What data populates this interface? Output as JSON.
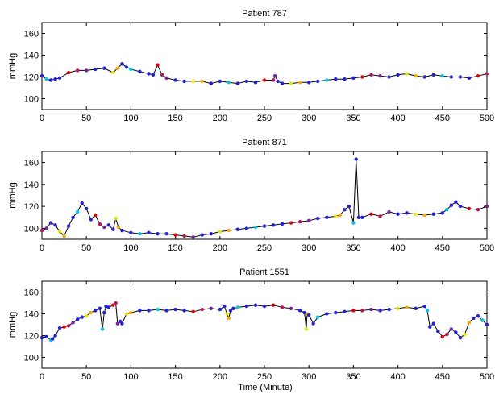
{
  "chart_data": [
    {
      "type": "line",
      "title": "Patient 787",
      "ylabel": "mmHg",
      "xlabel": "",
      "xlim": [
        0,
        500
      ],
      "ylim": [
        90,
        170
      ],
      "x_ticks": [
        0,
        50,
        100,
        150,
        200,
        250,
        300,
        350,
        400,
        450,
        500
      ],
      "y_ticks": [
        100,
        120,
        140,
        160
      ],
      "series": [
        {
          "x": [
            0,
            5,
            10,
            15,
            20,
            30,
            40,
            50,
            60,
            70,
            80,
            85,
            90,
            95,
            100,
            110,
            120,
            125,
            130,
            135,
            140,
            150,
            160,
            170,
            180,
            190,
            200,
            210,
            220,
            230,
            240,
            250,
            260,
            262,
            265,
            270,
            280,
            290,
            300,
            310,
            320,
            330,
            340,
            350,
            360,
            370,
            380,
            390,
            400,
            410,
            420,
            430,
            440,
            450,
            460,
            470,
            480,
            490,
            500
          ],
          "values": [
            121,
            118,
            117,
            118,
            119,
            124,
            126,
            126,
            127,
            128,
            124,
            128,
            132,
            129,
            127,
            125,
            123,
            122,
            131,
            122,
            119,
            117,
            116,
            116,
            116,
            114,
            116,
            115,
            114,
            116,
            115,
            117,
            117,
            121,
            116,
            114,
            114,
            115,
            115,
            116,
            117,
            118,
            118,
            119,
            120,
            122,
            121,
            120,
            122,
            123,
            121,
            120,
            122,
            121,
            120,
            120,
            119,
            121,
            123
          ]
        }
      ]
    },
    {
      "type": "line",
      "title": "Patient 871",
      "ylabel": "mmHg",
      "xlabel": "",
      "xlim": [
        0,
        500
      ],
      "ylim": [
        90,
        170
      ],
      "x_ticks": [
        0,
        50,
        100,
        150,
        200,
        250,
        300,
        350,
        400,
        450,
        500
      ],
      "y_ticks": [
        100,
        120,
        140,
        160
      ],
      "series": [
        {
          "x": [
            0,
            5,
            10,
            15,
            20,
            25,
            30,
            35,
            40,
            45,
            50,
            55,
            60,
            65,
            70,
            75,
            80,
            83,
            86,
            90,
            100,
            110,
            120,
            130,
            140,
            150,
            160,
            170,
            180,
            190,
            200,
            210,
            220,
            230,
            240,
            250,
            260,
            270,
            280,
            290,
            300,
            310,
            320,
            330,
            335,
            340,
            345,
            350,
            353,
            356,
            360,
            370,
            380,
            390,
            400,
            410,
            420,
            430,
            440,
            450,
            455,
            460,
            465,
            470,
            480,
            490,
            500
          ],
          "values": [
            98,
            100,
            105,
            103,
            97,
            93,
            102,
            110,
            115,
            123,
            118,
            108,
            112,
            104,
            101,
            103,
            99,
            109,
            101,
            98,
            96,
            95,
            96,
            95,
            95,
            94,
            93,
            92,
            94,
            95,
            97,
            98,
            99,
            100,
            101,
            102,
            103,
            104,
            105,
            106,
            107,
            109,
            110,
            111,
            112,
            117,
            120,
            105,
            163,
            110,
            110,
            113,
            111,
            115,
            113,
            114,
            113,
            112,
            113,
            114,
            117,
            121,
            124,
            120,
            118,
            117,
            120
          ]
        }
      ]
    },
    {
      "type": "line",
      "title": "Patient 1551",
      "ylabel": "mmHg",
      "xlabel": "Time (Minute)",
      "xlim": [
        0,
        500
      ],
      "ylim": [
        90,
        170
      ],
      "x_ticks": [
        0,
        50,
        100,
        150,
        200,
        250,
        300,
        350,
        400,
        450,
        500
      ],
      "y_ticks": [
        100,
        120,
        140,
        160
      ],
      "series": [
        {
          "x": [
            0,
            5,
            10,
            12,
            15,
            20,
            25,
            30,
            35,
            40,
            45,
            50,
            55,
            60,
            65,
            68,
            70,
            72,
            75,
            80,
            83,
            85,
            88,
            90,
            95,
            100,
            110,
            120,
            130,
            140,
            150,
            160,
            170,
            180,
            190,
            200,
            205,
            208,
            210,
            212,
            215,
            220,
            230,
            240,
            250,
            260,
            270,
            280,
            290,
            295,
            297,
            298,
            300,
            305,
            310,
            320,
            330,
            340,
            350,
            360,
            370,
            380,
            390,
            400,
            410,
            420,
            430,
            433,
            436,
            440,
            445,
            450,
            455,
            460,
            465,
            470,
            475,
            480,
            485,
            490,
            495,
            500
          ],
          "values": [
            118,
            119,
            116,
            117,
            120,
            127,
            128,
            129,
            132,
            135,
            137,
            138,
            141,
            143,
            145,
            126,
            141,
            147,
            146,
            148,
            150,
            131,
            133,
            131,
            140,
            141,
            143,
            143,
            144,
            143,
            144,
            143,
            142,
            144,
            145,
            144,
            147,
            140,
            136,
            143,
            145,
            146,
            147,
            148,
            147,
            148,
            146,
            145,
            143,
            141,
            126,
            140,
            139,
            131,
            137,
            140,
            141,
            142,
            143,
            143,
            144,
            143,
            144,
            145,
            146,
            145,
            147,
            143,
            128,
            131,
            124,
            119,
            121,
            126,
            123,
            118,
            121,
            132,
            136,
            138,
            134,
            130
          ]
        }
      ]
    }
  ]
}
